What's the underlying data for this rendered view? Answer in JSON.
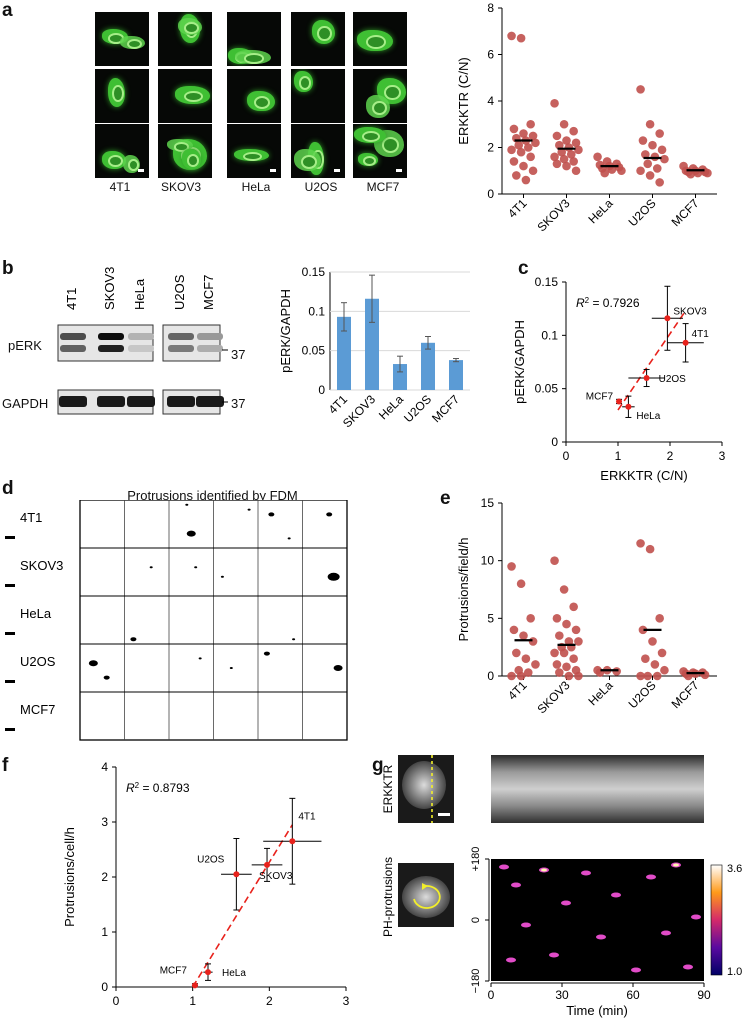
{
  "panels": {
    "a": {
      "label": "a",
      "cell_lines": [
        "4T1",
        "SKOV3",
        "HeLa",
        "U2OS",
        "MCF7"
      ]
    },
    "b": {
      "label": "b",
      "blot_labels": [
        "pERK",
        "GAPDH"
      ],
      "marker_kda": [
        "37",
        "37"
      ]
    },
    "c": {
      "label": "c",
      "r2_text": "= 0.7926"
    },
    "d": {
      "label": "d",
      "title": "Protrusions identified by FDM",
      "rows": [
        "4T1",
        "SKOV3",
        "HeLa",
        "U2OS",
        "MCF7"
      ]
    },
    "e": {
      "label": "e"
    },
    "f": {
      "label": "f",
      "r2_text": "= 0.8793"
    },
    "g": {
      "label": "g",
      "row_labels": [
        "ERKKTR",
        "PH-protrusions"
      ],
      "colorbar": {
        "max": "3.6",
        "min": "1.0"
      },
      "y_ticks": [
        "+180",
        "0",
        "−180"
      ],
      "x_ticks": [
        "0",
        "30",
        "60",
        "90"
      ],
      "xlabel": "Time (min)"
    }
  },
  "chart_data": [
    {
      "id": "a-right",
      "type": "scatter",
      "ylabel": "ERKKTR (C/N)",
      "categories": [
        "4T1",
        "SKOV3",
        "HeLa",
        "U2OS",
        "MCF7"
      ],
      "ylim": [
        0,
        8
      ],
      "yticks": [
        0,
        2,
        4,
        6,
        8
      ],
      "means": [
        2.3,
        1.95,
        1.2,
        1.55,
        1.02
      ],
      "points": [
        [
          6.8,
          6.7,
          3.0,
          2.8,
          2.6,
          2.5,
          2.4,
          2.3,
          2.2,
          2.1,
          2.0,
          1.9,
          1.8,
          1.6,
          1.4,
          1.2,
          1.0,
          0.8,
          0.6
        ],
        [
          3.9,
          3.0,
          2.7,
          2.5,
          2.3,
          2.2,
          2.1,
          2.0,
          1.9,
          1.8,
          1.7,
          1.6,
          1.5,
          1.4,
          1.3,
          1.2,
          1.0
        ],
        [
          1.6,
          1.4,
          1.3,
          1.25,
          1.2,
          1.15,
          1.1,
          1.05,
          1.0,
          0.9
        ],
        [
          4.5,
          3.0,
          2.6,
          2.3,
          2.1,
          1.9,
          1.7,
          1.6,
          1.5,
          1.3,
          1.1,
          1.0,
          0.8,
          0.5
        ],
        [
          1.2,
          1.1,
          1.05,
          1.0,
          1.0,
          0.95,
          0.95,
          0.9,
          0.9,
          0.85
        ]
      ]
    },
    {
      "id": "b-right",
      "type": "bar",
      "ylabel": "pERK/GAPDH",
      "categories": [
        "4T1",
        "SKOV3",
        "HeLa",
        "U2OS",
        "MCF7"
      ],
      "values": [
        0.093,
        0.116,
        0.033,
        0.06,
        0.038
      ],
      "errors": [
        0.018,
        0.03,
        0.01,
        0.008,
        0.002
      ],
      "ylim": [
        0,
        0.15
      ],
      "yticks": [
        "0",
        "0.05",
        "0.1",
        "0.15"
      ],
      "color": "#5b9bd5"
    },
    {
      "id": "c",
      "type": "scatter",
      "xlabel": "ERKKTR (C/N)",
      "ylabel": "pERK/GAPDH",
      "xlim": [
        0,
        3
      ],
      "ylim": [
        0,
        0.15
      ],
      "xticks": [
        "0",
        "1",
        "2",
        "3"
      ],
      "yticks": [
        "0",
        "0.05",
        "0.1",
        "0.15"
      ],
      "points": [
        {
          "name": "SKOV3",
          "x": 1.95,
          "y": 0.116,
          "xerr": 0.3,
          "yerr": 0.03
        },
        {
          "name": "4T1",
          "x": 2.3,
          "y": 0.093,
          "xerr": 0.35,
          "yerr": 0.018
        },
        {
          "name": "U2OS",
          "x": 1.55,
          "y": 0.06,
          "xerr": 0.35,
          "yerr": 0.008
        },
        {
          "name": "MCF7",
          "x": 1.02,
          "y": 0.038,
          "xerr": 0.05,
          "yerr": 0.002
        },
        {
          "name": "HeLa",
          "x": 1.2,
          "y": 0.033,
          "xerr": 0.12,
          "yerr": 0.01
        }
      ],
      "fit": [
        [
          1.0,
          0.03
        ],
        [
          2.3,
          0.123
        ]
      ]
    },
    {
      "id": "e",
      "type": "scatter",
      "ylabel": "Protrusions/field/h",
      "categories": [
        "4T1",
        "SKOV3",
        "HeLa",
        "U2OS",
        "MCF7"
      ],
      "ylim": [
        0,
        15
      ],
      "yticks": [
        0,
        5,
        10,
        15
      ],
      "means": [
        3.1,
        2.7,
        0.5,
        4.0,
        0.25
      ],
      "points": [
        [
          9.5,
          8.0,
          5.0,
          4.0,
          3.5,
          3.0,
          2.0,
          1.5,
          1.0,
          0.5,
          0.3,
          0.0,
          0.0
        ],
        [
          10.0,
          7.5,
          6.0,
          5.0,
          4.5,
          4.0,
          3.5,
          3.0,
          3.0,
          2.5,
          2.5,
          2.0,
          2.0,
          1.5,
          1.0,
          0.8,
          0.5,
          0.3,
          0.0,
          0.0
        ],
        [
          0.5,
          0.5,
          0.4,
          0.3
        ],
        [
          11.5,
          11.0,
          5.0,
          4.0,
          3.0,
          2.0,
          1.5,
          1.0,
          0.5,
          0.0,
          0.0,
          0.0
        ],
        [
          0.4,
          0.3,
          0.3,
          0.2,
          0.2,
          0.1,
          0.0
        ]
      ]
    },
    {
      "id": "f",
      "type": "scatter",
      "xlabel": "ERKKTR (C/N)",
      "ylabel": "Protrusions/cell/h",
      "xlim": [
        0,
        3
      ],
      "ylim": [
        0,
        4
      ],
      "xticks": [
        "0",
        "1",
        "2",
        "3"
      ],
      "yticks": [
        "0",
        "1",
        "2",
        "3",
        "4"
      ],
      "points": [
        {
          "name": "4T1",
          "x": 2.3,
          "y": 2.65,
          "xerr": 0.38,
          "yerr": 0.78
        },
        {
          "name": "U2OS",
          "x": 1.57,
          "y": 2.05,
          "xerr": 0.2,
          "yerr": 0.65
        },
        {
          "name": "SKOV3",
          "x": 1.97,
          "y": 2.22,
          "xerr": 0.2,
          "yerr": 0.3
        },
        {
          "name": "MCF7",
          "x": 1.03,
          "y": 0.03,
          "xerr": 0.04,
          "yerr": 0.03
        },
        {
          "name": "HeLa",
          "x": 1.2,
          "y": 0.27,
          "xerr": 0.06,
          "yerr": 0.15
        }
      ],
      "fit": [
        [
          1.0,
          0.0
        ],
        [
          2.3,
          2.95
        ]
      ]
    }
  ]
}
